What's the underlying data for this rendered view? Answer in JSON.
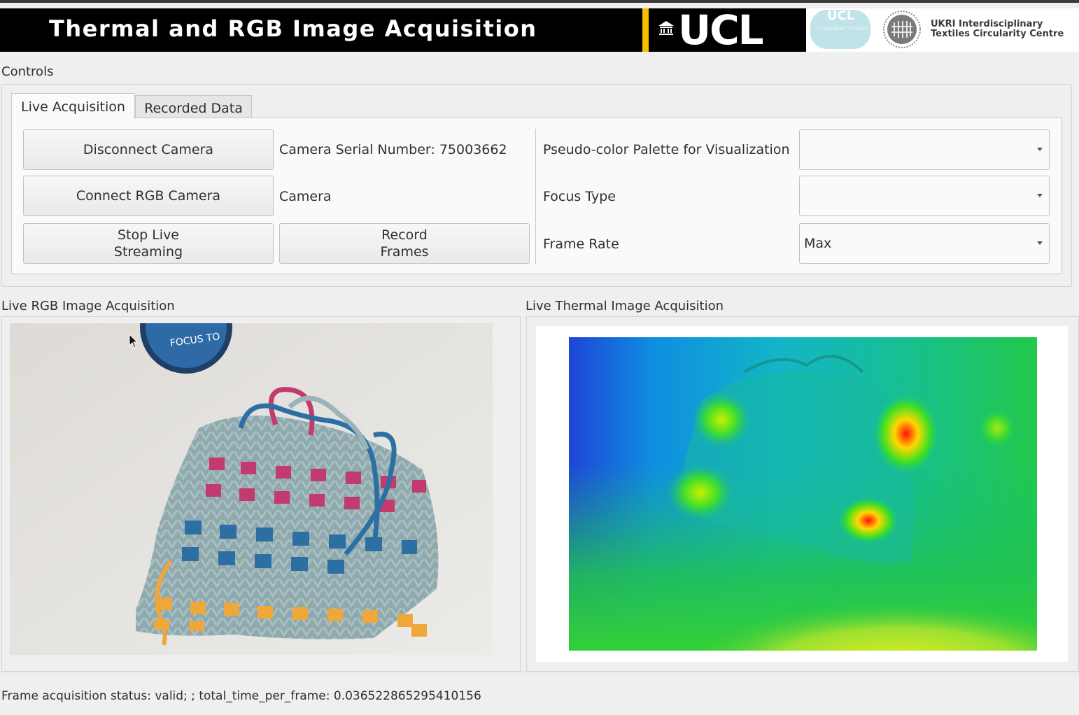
{
  "banner": {
    "title": "Thermal and RGB Image Acquisition",
    "ucl_logo": "UCL",
    "cs_logo_top": "UCL",
    "cs_logo_sub": "Computer Science",
    "ukri_line1": "UKRI Interdisciplinary",
    "ukri_line2": "Textiles Circularity Centre",
    "colors": {
      "banner_bg": "#000000",
      "ucl_gold": "#f6be00",
      "cs_teal": "#bfe3e8"
    }
  },
  "controls": {
    "label": "Controls",
    "tabs": [
      {
        "label": "Live Acquisition",
        "active": true
      },
      {
        "label": "Recorded Data",
        "active": false
      }
    ],
    "disconnect_camera": "Disconnect Camera",
    "camera_serial": "Camera Serial Number: 75003662",
    "connect_rgb": "Connect RGB Camera",
    "camera_label": "Camera",
    "stop_stream_line1": "Stop Live",
    "stop_stream_line2": "Streaming",
    "record_line1": "Record",
    "record_line2": "Frames",
    "palette_label": "Pseudo-color Palette for Visualization",
    "palette_value": "",
    "focus_label": "Focus Type",
    "focus_value": "",
    "framerate_label": "Frame Rate",
    "framerate_value": "Max"
  },
  "rgb_panel": {
    "label": "Live RGB Image Acquisition",
    "lens_cap_text": "FOCUS TO"
  },
  "thermal_panel": {
    "label": "Live Thermal Image Acquisition"
  },
  "status": "Frame acquisition status: valid; ; total_time_per_frame: 0.036522865295410156",
  "icons": {
    "dropdown": "chevron-down-icon",
    "crest": "ucl-portico-icon",
    "cursor": "mouse-pointer-icon"
  }
}
